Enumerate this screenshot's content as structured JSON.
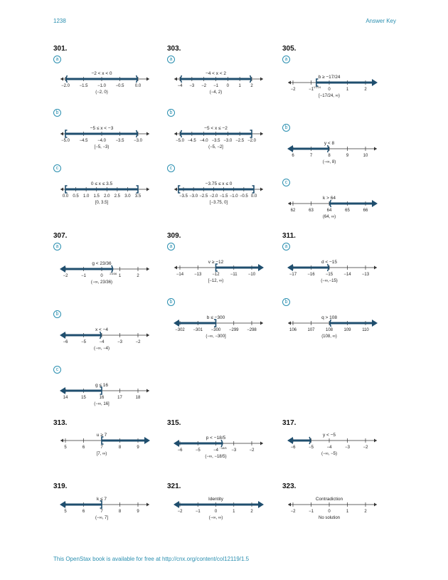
{
  "header": {
    "page": "1238",
    "section": "Answer Key"
  },
  "footer": "This OpenStax book is available for free at http://cnx.org/content/col12119/1.5",
  "problems": [
    {
      "num": "301.",
      "parts": [
        {
          "label": "a",
          "title": "−2 < x < 0",
          "ticks": [
            "−2.0",
            "−1.5",
            "−1.0",
            "−0.5",
            "0.0"
          ],
          "interval": "(−2, 0)"
        },
        {
          "label": "b",
          "title": "−5 ≤ x < −3",
          "ticks": [
            "−5.0",
            "−4.5",
            "−4.0",
            "−3.5",
            "−3.0"
          ],
          "interval": "[−5, −3)"
        },
        {
          "label": "c",
          "title": "0 ≤ x ≤ 3.5",
          "ticks": [
            "0.0",
            "0.5",
            "1.0",
            "1.5",
            "2.0",
            "2.5",
            "3.0",
            "3.5"
          ],
          "interval": "[0, 3.5]"
        }
      ]
    },
    {
      "num": "303.",
      "parts": [
        {
          "label": "a",
          "title": "−4 < x < 2",
          "ticks": [
            "−4",
            "−3",
            "−2",
            "−1",
            "0",
            "1",
            "2"
          ],
          "interval": "(−4, 2)"
        },
        {
          "label": "b",
          "title": "−5 < x ≤ −2",
          "ticks": [
            "−5.0",
            "−4.5",
            "−4.0",
            "−3.5",
            "−3.0",
            "−2.5",
            "−2.0"
          ],
          "interval": "(−5, −2]"
        },
        {
          "label": "c",
          "title": "−3.75 ≤ x ≤ 0",
          "ticks": [
            "−3.5",
            "−3.0",
            "−2.5",
            "−2.0",
            "−1.5",
            "−1.0",
            "−0.5",
            "0.0"
          ],
          "interval": "[−3.75, 0]"
        }
      ]
    },
    {
      "num": "305.",
      "parts": [
        {
          "label": "a",
          "title": "b ≥ −17/24",
          "ticks": [
            "−2",
            "−1",
            "0",
            "1",
            "2"
          ],
          "point_label": "−17/24",
          "interval": "[−17/24, ∞)"
        },
        {
          "label": "b",
          "title": "y < 8",
          "ticks": [
            "6",
            "7",
            "8",
            "9",
            "10"
          ],
          "interval": "(−∞, 8)"
        },
        {
          "label": "c",
          "title": "k > 64",
          "ticks": [
            "62",
            "63",
            "64",
            "65",
            "66"
          ],
          "interval": "(64, ∞)"
        }
      ]
    },
    {
      "num": "307.",
      "parts": [
        {
          "label": "a",
          "title": "g < 23/36",
          "ticks": [
            "−2",
            "−1",
            "0",
            "1",
            "2"
          ],
          "point_label": "23/36",
          "interval": "(−∞, 23/36)"
        },
        {
          "label": "b",
          "title": "x < −4",
          "ticks": [
            "−6",
            "−5",
            "−4",
            "−3",
            "−2"
          ],
          "interval": "(−∞, −4)"
        },
        {
          "label": "c",
          "title": "g ≤ 16",
          "ticks": [
            "14",
            "15",
            "16",
            "17",
            "18"
          ],
          "interval": "(−∞, 16]"
        }
      ]
    },
    {
      "num": "309.",
      "parts": [
        {
          "label": "a",
          "title": "v ≥ −12",
          "ticks": [
            "−14",
            "−13",
            "−12",
            "−11",
            "−10"
          ],
          "interval": "[−12, ∞)"
        },
        {
          "label": "b",
          "title": "b ≤ −300",
          "ticks": [
            "−302",
            "−301",
            "−300",
            "−299",
            "−298"
          ],
          "interval": "(−∞, −300]"
        }
      ]
    },
    {
      "num": "311.",
      "parts": [
        {
          "label": "a",
          "title": "d < −15",
          "ticks": [
            "−17",
            "−16",
            "−15",
            "−14",
            "−13"
          ],
          "interval": "(−∞,−15)"
        },
        {
          "label": "b",
          "title": "q > 108",
          "ticks": [
            "106",
            "107",
            "108",
            "109",
            "110"
          ],
          "interval": "(108, ∞)"
        }
      ]
    },
    {
      "num": "313.",
      "parts": [
        {
          "title": "u ≥ 7",
          "ticks": [
            "5",
            "6",
            "7",
            "8",
            "9"
          ],
          "interval": "[7, ∞)"
        }
      ]
    },
    {
      "num": "315.",
      "parts": [
        {
          "title": "p < −18/5",
          "ticks": [
            "−6",
            "−5",
            "−4",
            "−3",
            "−2"
          ],
          "point_label": "−18/5",
          "interval": "(−∞, −18/5)"
        }
      ]
    },
    {
      "num": "317.",
      "parts": [
        {
          "title": "y < −5",
          "ticks": [
            "−6",
            "−5",
            "−4",
            "−3",
            "−2"
          ],
          "interval": "(−∞, −5)"
        }
      ]
    },
    {
      "num": "319.",
      "parts": [
        {
          "title": "k ≤ 7",
          "ticks": [
            "5",
            "6",
            "7",
            "8",
            "9"
          ],
          "interval": "(−∞, 7]"
        }
      ]
    },
    {
      "num": "321.",
      "parts": [
        {
          "title": "Identity",
          "ticks": [
            "−2",
            "−1",
            "0",
            "1",
            "2"
          ],
          "interval": "(−∞, ∞)"
        }
      ]
    },
    {
      "num": "323.",
      "parts": [
        {
          "title": "Contradiction",
          "ticks": [
            "−2",
            "−1",
            "0",
            "1",
            "2"
          ],
          "interval": "No solution"
        }
      ]
    }
  ]
}
